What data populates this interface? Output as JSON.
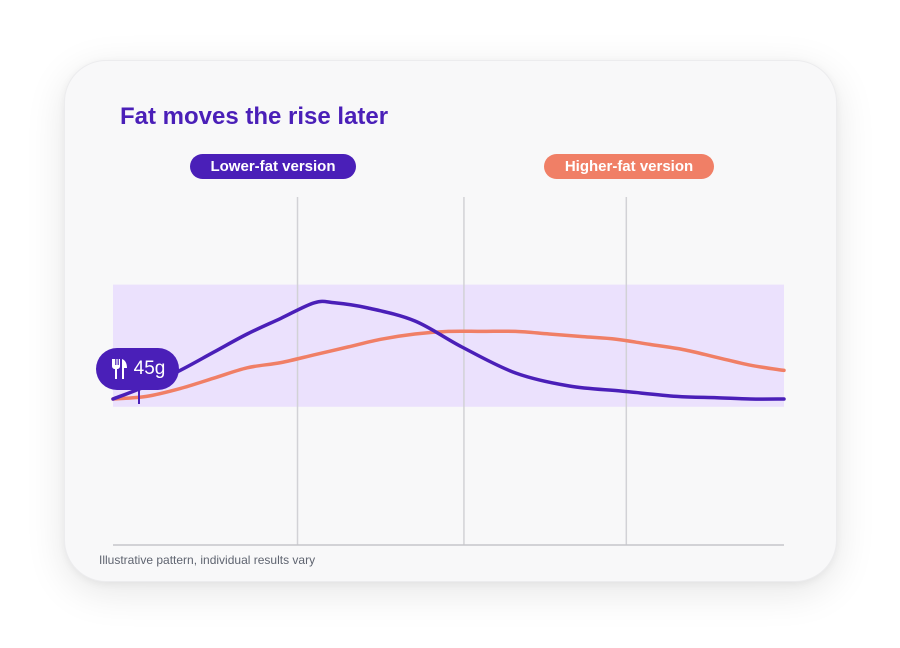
{
  "title": "Fat moves the rise later",
  "note": "Illustrative pattern, individual results vary",
  "meal": {
    "icon": "fork-knife-icon",
    "label": "45g"
  },
  "colors": {
    "lower": "#4a1fb8",
    "higher": "#f07f66",
    "band": "#ebe1fd",
    "grid": "#d2d2d6",
    "axis": "#c5c5ca"
  },
  "chart_data": {
    "type": "line",
    "title": "Fat moves the rise later",
    "xlabel": "",
    "ylabel": "",
    "xlim": [
      0,
      100
    ],
    "ylim": [
      0,
      100
    ],
    "band": [
      32,
      79
    ],
    "gridlines_x": [
      27.5,
      52.3,
      76.5
    ],
    "grid": true,
    "legend": "top",
    "series": [
      {
        "name": "Lower-fat version",
        "color": "#4a1fb8",
        "x": [
          0,
          5,
          10,
          15,
          20,
          25,
          30,
          33,
          38,
          45,
          52,
          60,
          68,
          76,
          84,
          90,
          95,
          100
        ],
        "y": [
          35,
          40,
          46,
          53,
          60,
          66,
          72,
          72,
          70,
          65,
          55,
          45,
          40,
          38,
          36,
          35.5,
          35,
          35
        ]
      },
      {
        "name": "Higher-fat version",
        "color": "#f07f66",
        "x": [
          0,
          5,
          10,
          15,
          20,
          25,
          30,
          35,
          40,
          45,
          50,
          55,
          60,
          65,
          70,
          75,
          80,
          85,
          90,
          95,
          100
        ],
        "y": [
          35,
          36,
          39,
          43,
          47,
          49,
          52,
          55,
          58,
          60,
          61,
          61,
          61,
          60,
          59,
          58,
          56,
          54,
          51,
          48,
          46
        ]
      }
    ]
  }
}
